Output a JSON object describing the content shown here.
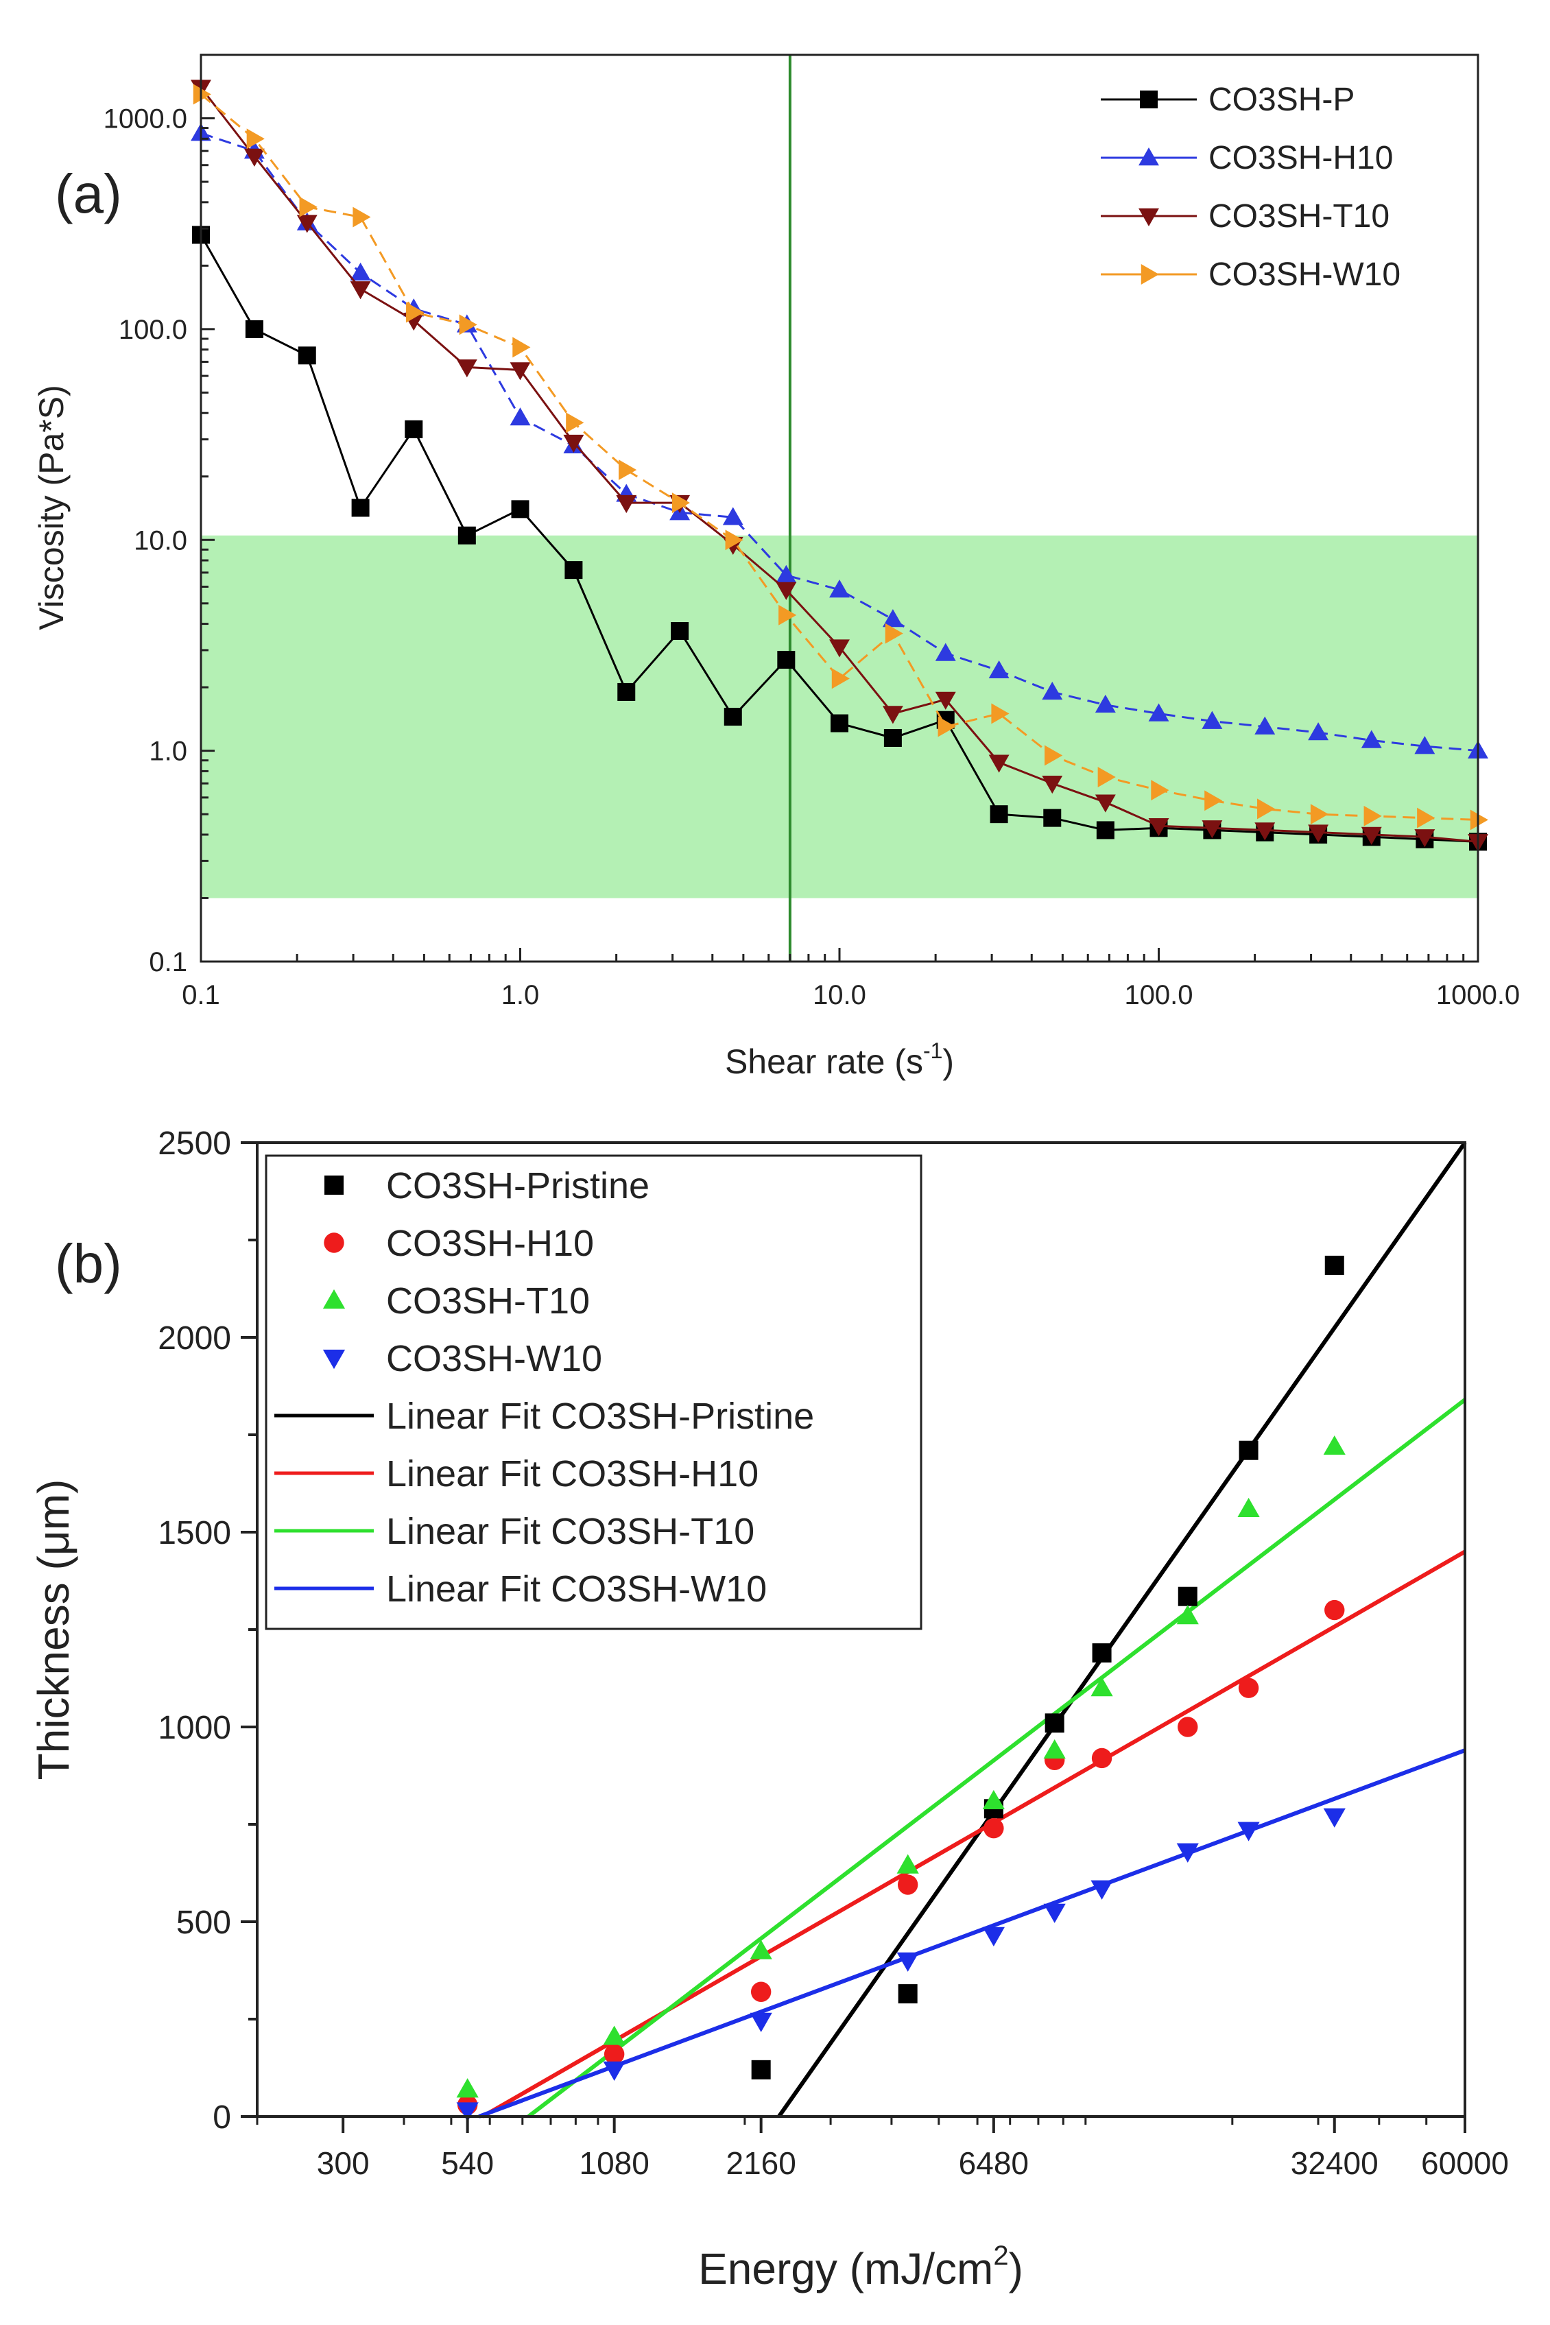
{
  "chart_data": [
    {
      "type": "line",
      "panel_label": "(a)",
      "xlabel": "Shear rate (s",
      "xlabel_sup": "-1",
      "xlabel_end": ")",
      "ylabel": "Viscosity (Pa*S)",
      "xscale": "log",
      "yscale": "log",
      "xlim": [
        0.1,
        1000
      ],
      "ylim": [
        0.1,
        2000
      ],
      "xticks": [
        0.1,
        1,
        10,
        100,
        1000
      ],
      "xtick_labels": [
        "0.1",
        "1.0",
        "10.0",
        "100.0",
        "1000.0"
      ],
      "yticks": [
        0.1,
        1,
        10,
        100,
        1000
      ],
      "ytick_labels": [
        "0.1",
        "1.0",
        "10.0",
        "100.0",
        "1000.0"
      ],
      "shaded_band": {
        "ymin": 0.2,
        "ymax": 10.5,
        "color": "#b4f0b4"
      },
      "vertical_line": {
        "x": 7,
        "color": "#2e8b2e"
      },
      "legend_position": "top-right",
      "x": [
        0.1,
        0.147,
        0.215,
        0.316,
        0.464,
        0.681,
        1.0,
        1.47,
        2.15,
        3.16,
        4.64,
        6.81,
        10.0,
        14.7,
        21.5,
        31.6,
        46.4,
        68.1,
        100,
        147,
        215,
        316,
        464,
        681,
        1000
      ],
      "series": [
        {
          "name": "CO3SH-P",
          "color": "#000000",
          "marker": "square",
          "dash": "solid",
          "values": [
            280,
            100,
            75,
            14.2,
            33.5,
            10.5,
            14,
            7.2,
            1.9,
            3.7,
            1.45,
            2.7,
            1.35,
            1.15,
            1.4,
            0.5,
            0.48,
            0.42,
            0.43,
            0.42,
            0.41,
            0.4,
            0.39,
            0.38,
            0.37
          ]
        },
        {
          "name": "CO3SH-H10",
          "color": "#2d3ae0",
          "marker": "triangle-up",
          "dash": "dash",
          "values": [
            850,
            700,
            320,
            185,
            125,
            105,
            38,
            28,
            16.5,
            13.5,
            12.8,
            6.8,
            5.8,
            4.2,
            2.9,
            2.4,
            1.9,
            1.65,
            1.5,
            1.38,
            1.3,
            1.22,
            1.12,
            1.05,
            1.0
          ]
        },
        {
          "name": "CO3SH-T10",
          "color": "#7b1111",
          "marker": "triangle-down",
          "dash": "solid",
          "values": [
            1400,
            660,
            320,
            155,
            110,
            66,
            64,
            29,
            15,
            15,
            9.5,
            5.8,
            3.1,
            1.5,
            1.75,
            0.88,
            0.7,
            0.57,
            0.44,
            0.43,
            0.42,
            0.41,
            0.4,
            0.39,
            0.37
          ]
        },
        {
          "name": "CO3SH-W10",
          "color": "#f39a24",
          "marker": "triangle-right",
          "dash": "dash",
          "values": [
            1300,
            800,
            380,
            340,
            120,
            105,
            82,
            36,
            21.5,
            15,
            10,
            4.4,
            2.2,
            3.6,
            1.3,
            1.5,
            0.95,
            0.75,
            0.65,
            0.58,
            0.53,
            0.5,
            0.49,
            0.48,
            0.47
          ]
        }
      ]
    },
    {
      "type": "scatter",
      "panel_label": "(b)",
      "xlabel": "Energy (mJ/cm",
      "xlabel_sup": "2",
      "xlabel_end": ")",
      "ylabel": "Thickness (μm)",
      "xscale": "log",
      "xlim": [
        200,
        60000
      ],
      "ylim": [
        0,
        2500
      ],
      "xticks": [
        300,
        540,
        1080,
        2160,
        6480,
        32400,
        60000
      ],
      "xtick_labels": [
        "300",
        "540",
        "1080",
        "2160",
        "6480",
        "32400",
        "60000"
      ],
      "yticks": [
        0,
        500,
        1000,
        1500,
        2000,
        2500
      ],
      "ytick_labels": [
        "0",
        "500",
        "1000",
        "1500",
        "2000",
        "2500"
      ],
      "legend_position": "top-left",
      "series": [
        {
          "name": "CO3SH-Pristine",
          "color": "#000000",
          "marker": "square",
          "points": [
            [
              2160,
              120
            ],
            [
              4320,
              315
            ],
            [
              6480,
              790
            ],
            [
              8640,
              1010
            ],
            [
              10800,
              1190
            ],
            [
              16200,
              1335
            ],
            [
              21600,
              1710
            ],
            [
              32400,
              2185
            ]
          ]
        },
        {
          "name": "CO3SH-H10",
          "color": "#ee1c1c",
          "marker": "circle",
          "points": [
            [
              540,
              30
            ],
            [
              1080,
              160
            ],
            [
              2160,
              320
            ],
            [
              4320,
              595
            ],
            [
              6480,
              740
            ],
            [
              8640,
              915
            ],
            [
              10800,
              920
            ],
            [
              16200,
              1000
            ],
            [
              21600,
              1100
            ],
            [
              32400,
              1300
            ]
          ]
        },
        {
          "name": "CO3SH-T10",
          "color": "#2ee02e",
          "marker": "triangle-up",
          "points": [
            [
              540,
              70
            ],
            [
              1080,
              205
            ],
            [
              2160,
              425
            ],
            [
              4320,
              645
            ],
            [
              6480,
              810
            ],
            [
              8640,
              940
            ],
            [
              10800,
              1100
            ],
            [
              16200,
              1285
            ],
            [
              21600,
              1560
            ],
            [
              32400,
              1720
            ]
          ]
        },
        {
          "name": "CO3SH-W10",
          "color": "#1c2ee8",
          "marker": "triangle-down",
          "points": [
            [
              540,
              15
            ],
            [
              1080,
              120
            ],
            [
              2160,
              245
            ],
            [
              4320,
              400
            ],
            [
              6480,
              465
            ],
            [
              8640,
              525
            ],
            [
              10800,
              585
            ],
            [
              16200,
              680
            ],
            [
              21600,
              735
            ],
            [
              32400,
              770
            ]
          ]
        }
      ],
      "fits": [
        {
          "name": "Linear Fit CO3SH-Pristine",
          "color": "#000000",
          "from": [
            2350,
            0
          ],
          "to": [
            60000,
            2500
          ]
        },
        {
          "name": "Linear Fit CO3SH-H10",
          "color": "#ee1c1c",
          "from": [
            580,
            0
          ],
          "to": [
            60000,
            1450
          ]
        },
        {
          "name": "Linear Fit CO3SH-T10",
          "color": "#2ee02e",
          "from": [
            720,
            0
          ],
          "to": [
            60000,
            1840
          ]
        },
        {
          "name": "Linear Fit CO3SH-W10",
          "color": "#1c2ee8",
          "from": [
            570,
            0
          ],
          "to": [
            60000,
            940
          ]
        }
      ]
    }
  ]
}
